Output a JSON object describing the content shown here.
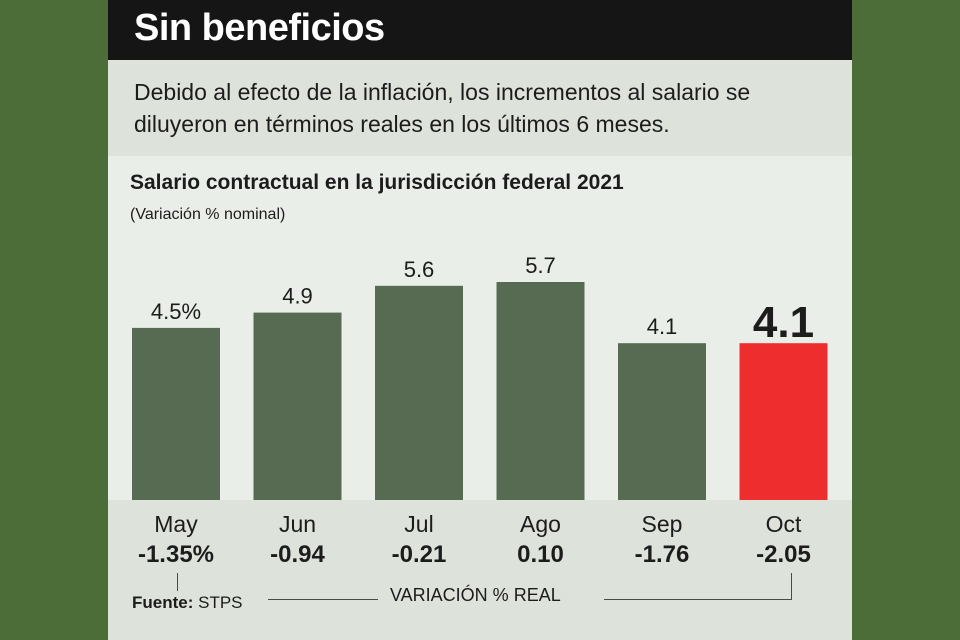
{
  "header": {
    "title": "Sin beneficios",
    "subtitle": "Debido al efecto de la inflación, los incrementos al salario se diluyeron en términos reales en los últimos 6 meses."
  },
  "chart_data": {
    "type": "bar",
    "title": "Salario contractual en la jurisdicción federal 2021",
    "subtitle": "(Variación % nominal)",
    "categories": [
      "May",
      "Jun",
      "Jul",
      "Ago",
      "Sep",
      "Oct"
    ],
    "values": [
      4.5,
      4.9,
      5.6,
      5.7,
      4.1,
      4.1
    ],
    "value_labels": [
      "4.5%",
      "4.9",
      "5.6",
      "5.7",
      "4.1",
      "4.1"
    ],
    "real_values_label": "VARIACIÓN % REAL",
    "real_values": [
      -1.35,
      -0.94,
      -0.21,
      0.1,
      -1.76,
      -2.05
    ],
    "real_value_labels": [
      "-1.35%",
      "-0.94",
      "-0.21",
      "0.10",
      "-1.76",
      "-2.05"
    ],
    "highlight_index": 5,
    "colors": {
      "bar": "#566b51",
      "highlight": "#ee2e2e"
    },
    "ylim": [
      0,
      5.7
    ]
  },
  "footer": {
    "source_label": "Fuente:",
    "source_value": "STPS"
  }
}
